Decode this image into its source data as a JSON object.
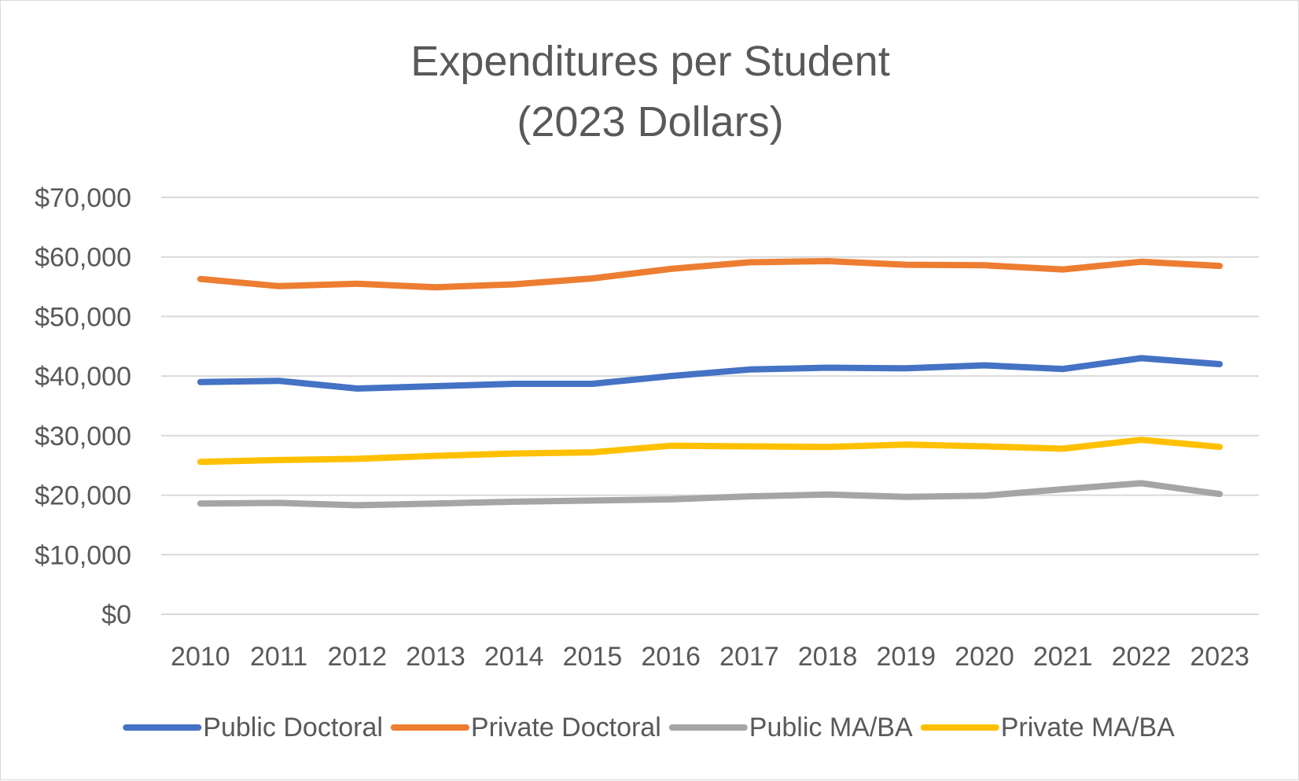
{
  "chart_data": {
    "type": "line",
    "title": "Expenditures per Student",
    "subtitle": "(2023 Dollars)",
    "xlabel": "",
    "ylabel": "",
    "categories": [
      "2010",
      "2011",
      "2012",
      "2013",
      "2014",
      "2015",
      "2016",
      "2017",
      "2018",
      "2019",
      "2020",
      "2021",
      "2022",
      "2023"
    ],
    "ylim": [
      0,
      70000
    ],
    "yticks": [
      0,
      10000,
      20000,
      30000,
      40000,
      50000,
      60000,
      70000
    ],
    "ytick_labels": [
      "$0",
      "$10,000",
      "$20,000",
      "$30,000",
      "$40,000",
      "$50,000",
      "$60,000",
      "$70,000"
    ],
    "grid": true,
    "legend_position": "bottom",
    "series": [
      {
        "name": "Public Doctoral",
        "color": "#4472C4",
        "values": [
          39000,
          39200,
          37900,
          38300,
          38700,
          38700,
          40000,
          41100,
          41400,
          41300,
          41800,
          41200,
          43000,
          42000
        ]
      },
      {
        "name": "Private Doctoral",
        "color": "#ED7D31",
        "values": [
          56300,
          55100,
          55500,
          54900,
          55400,
          56400,
          58000,
          59100,
          59300,
          58700,
          58600,
          57900,
          59200,
          58500
        ]
      },
      {
        "name": "Public MA/BA",
        "color": "#A5A5A5",
        "values": [
          18600,
          18700,
          18300,
          18600,
          18900,
          19100,
          19300,
          19800,
          20100,
          19700,
          19900,
          21000,
          22000,
          20200
        ]
      },
      {
        "name": "Private MA/BA",
        "color": "#FFC000",
        "values": [
          25600,
          25900,
          26100,
          26600,
          27000,
          27200,
          28300,
          28200,
          28100,
          28500,
          28200,
          27800,
          29300,
          28100
        ]
      }
    ]
  }
}
